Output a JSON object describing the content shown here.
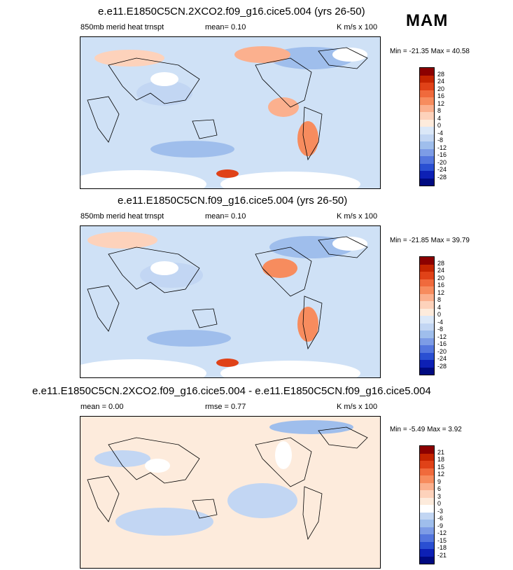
{
  "season": "MAM",
  "units": "K m/s x 100",
  "panels": [
    {
      "title": "e.e11.E1850C5CN.2XCO2.f09_g16.cice5.004 (yrs 26-50)",
      "left_label": "850mb merid heat trnspt",
      "mid_label": "mean=  0.10",
      "right_label": "K m/s x 100",
      "minmax": "Min = -21.35 Max =  40.58"
    },
    {
      "title": "e.e11.E1850C5CN.f09_g16.cice5.004 (yrs 26-50)",
      "left_label": "850mb merid heat trnspt",
      "mid_label": "mean=  0.10",
      "right_label": "K m/s x 100",
      "minmax": "Min = -21.85 Max =  39.79"
    },
    {
      "title": "e.e11.E1850C5CN.2XCO2.f09_g16.cice5.004 - e.e11.E1850C5CN.f09_g16.cice5.004",
      "left_label": "mean =  0.00",
      "mid_label": "rmse =  0.77",
      "right_label": "K m/s x 100",
      "minmax": "Min =  -5.49 Max =   3.92"
    }
  ],
  "chart_data": [
    {
      "type": "heatmap",
      "title": "e.e11.E1850C5CN.2XCO2.f09_g16.cice5.004 (yrs 26-50)",
      "variable": "850mb merid heat trnspt",
      "mean": 0.1,
      "min": -21.35,
      "max": 40.58,
      "colorbar_levels": [
        "28",
        "24",
        "20",
        "16",
        "12",
        "8",
        "4",
        "0",
        "-4",
        "-8",
        "-12",
        "-16",
        "-20",
        "-24",
        "-28"
      ],
      "colorbar_colors": [
        "#8c0000",
        "#c42400",
        "#e04218",
        "#f06a3c",
        "#f78c5e",
        "#fbb08e",
        "#fdd2bb",
        "#fdebdc",
        "#dbe8f8",
        "#c2d6f3",
        "#9fbeec",
        "#7d9ce6",
        "#5476de",
        "#2a4fd2",
        "#0d20b5",
        "#000a80"
      ]
    },
    {
      "type": "heatmap",
      "title": "e.e11.E1850C5CN.f09_g16.cice5.004 (yrs 26-50)",
      "variable": "850mb merid heat trnspt",
      "mean": 0.1,
      "min": -21.85,
      "max": 39.79,
      "colorbar_levels": [
        "28",
        "24",
        "20",
        "16",
        "12",
        "8",
        "4",
        "0",
        "-4",
        "-8",
        "-12",
        "-16",
        "-20",
        "-24",
        "-28"
      ],
      "colorbar_colors": [
        "#8c0000",
        "#c42400",
        "#e04218",
        "#f06a3c",
        "#f78c5e",
        "#fbb08e",
        "#fdd2bb",
        "#fdebdc",
        "#dbe8f8",
        "#c2d6f3",
        "#9fbeec",
        "#7d9ce6",
        "#5476de",
        "#2a4fd2",
        "#0d20b5",
        "#000a80"
      ]
    },
    {
      "type": "heatmap",
      "title": "e.e11.E1850C5CN.2XCO2.f09_g16.cice5.004 - e.e11.E1850C5CN.f09_g16.cice5.004",
      "mean": 0.0,
      "rmse": 0.77,
      "min": -5.49,
      "max": 3.92,
      "colorbar_levels": [
        "21",
        "18",
        "15",
        "12",
        "9",
        "6",
        "3",
        "0",
        "-3",
        "-6",
        "-9",
        "-12",
        "-15",
        "-18",
        "-21"
      ],
      "colorbar_colors": [
        "#8c0000",
        "#c42400",
        "#e04218",
        "#f06a3c",
        "#f78c5e",
        "#fbb08e",
        "#fdd2bb",
        "#fdebdc",
        "#ffffff",
        "#c2d6f3",
        "#9fbeec",
        "#7d9ce6",
        "#5476de",
        "#2a4fd2",
        "#0d20b5",
        "#000a80"
      ]
    }
  ]
}
